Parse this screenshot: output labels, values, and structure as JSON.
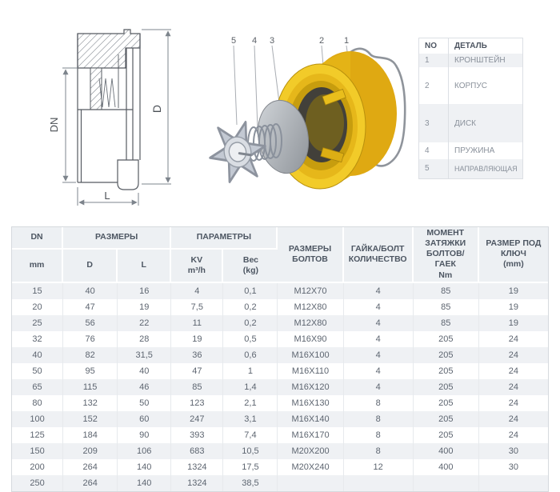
{
  "drawing": {
    "labels": {
      "dn": "DN",
      "d": "D",
      "l": "L"
    }
  },
  "exploded": {
    "callouts": {
      "c5": "5",
      "c4": "4",
      "c3": "3",
      "c2": "2",
      "c1": "1"
    },
    "colors": {
      "body_yellow": "#f2cb29",
      "metal_gray": "#c3c9d3",
      "wire_gray": "#8f949b"
    }
  },
  "parts_table": {
    "headers": [
      "NO",
      "ДЕТАЛЬ"
    ],
    "rows": [
      [
        "1",
        "КРОНШТЕЙН"
      ],
      [
        "2",
        "КОРПУС"
      ],
      [
        "3",
        "ДИСК"
      ],
      [
        "4",
        "ПРУЖИНА"
      ],
      [
        "5",
        "НАПРАВЛЯЮЩАЯ"
      ]
    ]
  },
  "main_table": {
    "group_headers": {
      "dn": "DN",
      "sizes": "РАЗМЕРЫ",
      "params": "ПАРАМЕТРЫ",
      "bolt_sizes": "РАЗМЕРЫ\nБОЛТОВ",
      "nut_bolt_qty": "ГАЙКА/БОЛТ\nКОЛИЧЕСТВО",
      "torque": "МОМЕНТ\nЗАТЯЖКИ\nБОЛТОВ/ ГАЕК\nNm",
      "wrench": "РАЗМЕР ПОД\nКЛЮЧ\n(mm)"
    },
    "sub_headers": {
      "mm": "mm",
      "d": "D",
      "l": "L",
      "kv": "KV\nm³/h",
      "weight": "Вес\n(kg)"
    },
    "rows": [
      [
        "15",
        "40",
        "16",
        "4",
        "0,1",
        "M12X70",
        "4",
        "85",
        "19"
      ],
      [
        "20",
        "47",
        "19",
        "7,5",
        "0,2",
        "M12X80",
        "4",
        "85",
        "19"
      ],
      [
        "25",
        "56",
        "22",
        "11",
        "0,2",
        "M12X80",
        "4",
        "85",
        "19"
      ],
      [
        "32",
        "76",
        "28",
        "19",
        "0,5",
        "M16X90",
        "4",
        "205",
        "24"
      ],
      [
        "40",
        "82",
        "31,5",
        "36",
        "0,6",
        "M16X100",
        "4",
        "205",
        "24"
      ],
      [
        "50",
        "95",
        "40",
        "47",
        "1",
        "M16X110",
        "4",
        "205",
        "24"
      ],
      [
        "65",
        "115",
        "46",
        "85",
        "1,4",
        "M16X120",
        "4",
        "205",
        "24"
      ],
      [
        "80",
        "132",
        "50",
        "123",
        "2,1",
        "M16X130",
        "8",
        "205",
        "24"
      ],
      [
        "100",
        "152",
        "60",
        "247",
        "3,1",
        "M16X140",
        "8",
        "205",
        "24"
      ],
      [
        "125",
        "184",
        "90",
        "393",
        "7,4",
        "M16X170",
        "8",
        "205",
        "24"
      ],
      [
        "150",
        "209",
        "106",
        "683",
        "10,5",
        "M20X200",
        "8",
        "400",
        "30"
      ],
      [
        "200",
        "264",
        "140",
        "1324",
        "17,5",
        "M20X240",
        "12",
        "400",
        "30"
      ],
      [
        "250",
        "264",
        "140",
        "1324",
        "38,5",
        "",
        "",
        "",
        ""
      ]
    ]
  }
}
